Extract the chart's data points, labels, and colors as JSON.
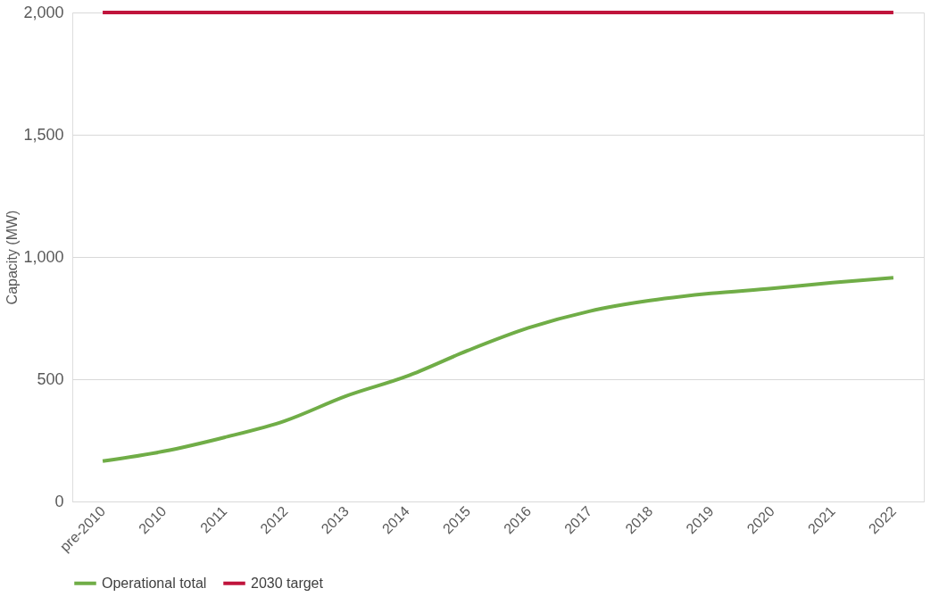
{
  "chart_data": {
    "type": "line",
    "ylabel": "Capacity (MW)",
    "categories": [
      "pre-2010",
      "2010",
      "2011",
      "2012",
      "2013",
      "2014",
      "2015",
      "2016",
      "2017",
      "2018",
      "2019",
      "2020",
      "2021",
      "2022"
    ],
    "series": [
      {
        "name": "Operational total",
        "color": "#70ad47",
        "values": [
          165,
          205,
          262,
          330,
          431,
          512,
          617,
          710,
          778,
          822,
          851,
          871,
          895,
          915
        ]
      },
      {
        "name": "2030 target",
        "color": "#c0143c",
        "values": [
          2000,
          2000,
          2000,
          2000,
          2000,
          2000,
          2000,
          2000,
          2000,
          2000,
          2000,
          2000,
          2000,
          2000
        ]
      }
    ],
    "ylim": [
      0,
      2000
    ],
    "yticks": [
      0,
      500,
      {
        "value": 1000,
        "label": "1,000"
      },
      {
        "value": 1500,
        "label": "1,500"
      },
      {
        "value": 2000,
        "label": "2,000"
      }
    ],
    "grid": "y",
    "legend": "bottom",
    "marker": "none",
    "line_style": "solid"
  }
}
